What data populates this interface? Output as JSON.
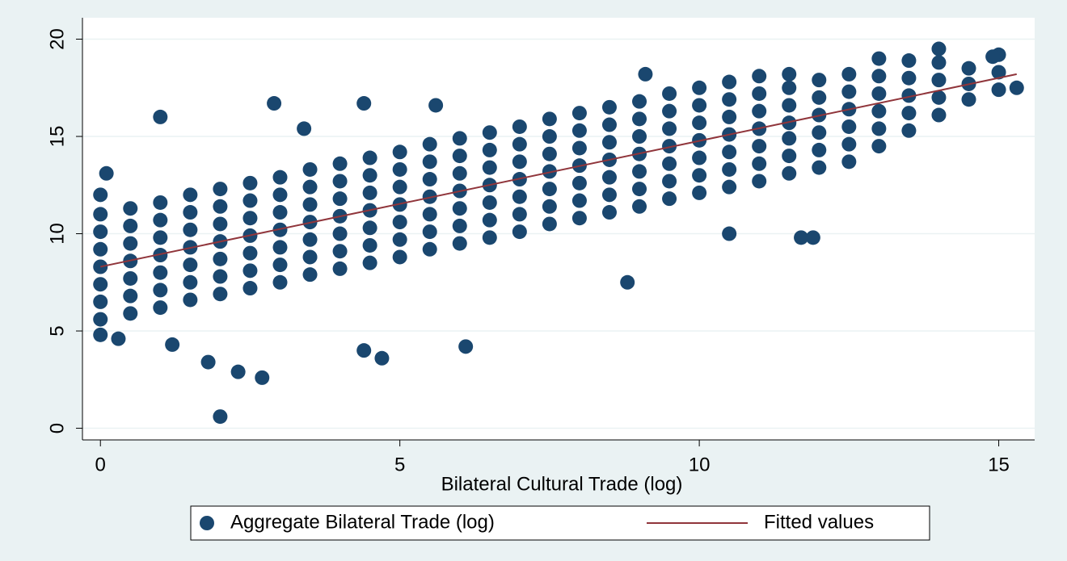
{
  "chart_data": {
    "type": "scatter",
    "xlabel": "Bilateral Cultural Trade (log)",
    "xlim": [
      -0.3,
      15.6
    ],
    "xticks": [
      0,
      5,
      10,
      15
    ],
    "ylim": [
      -0.6,
      21.1
    ],
    "yticks": [
      0,
      5,
      10,
      15,
      20
    ],
    "grid": true,
    "legend": "bottom",
    "series": [
      {
        "name": "Aggregate Bilateral Trade (log)",
        "color": "#1a476f",
        "x": [
          0,
          0,
          0,
          0,
          0,
          0,
          0,
          0,
          0,
          0.5,
          0.5,
          0.5,
          0.5,
          0.5,
          0.5,
          0.5,
          1,
          1,
          1,
          1,
          1,
          1,
          1,
          1.5,
          1.5,
          1.5,
          1.5,
          1.5,
          1.5,
          1.5,
          2,
          2,
          2,
          2,
          2,
          2,
          2,
          2.5,
          2.5,
          2.5,
          2.5,
          2.5,
          2.5,
          2.5,
          3,
          3,
          3,
          3,
          3,
          3,
          3,
          3.5,
          3.5,
          3.5,
          3.5,
          3.5,
          3.5,
          3.5,
          4,
          4,
          4,
          4,
          4,
          4,
          4,
          4.5,
          4.5,
          4.5,
          4.5,
          4.5,
          4.5,
          4.5,
          5,
          5,
          5,
          5,
          5,
          5,
          5,
          5.5,
          5.5,
          5.5,
          5.5,
          5.5,
          5.5,
          5.5,
          6,
          6,
          6,
          6,
          6,
          6,
          6,
          6.5,
          6.5,
          6.5,
          6.5,
          6.5,
          6.5,
          6.5,
          7,
          7,
          7,
          7,
          7,
          7,
          7,
          7.5,
          7.5,
          7.5,
          7.5,
          7.5,
          7.5,
          7.5,
          8,
          8,
          8,
          8,
          8,
          8,
          8,
          8.5,
          8.5,
          8.5,
          8.5,
          8.5,
          8.5,
          8.5,
          9,
          9,
          9,
          9,
          9,
          9,
          9,
          9.5,
          9.5,
          9.5,
          9.5,
          9.5,
          9.5,
          9.5,
          10,
          10,
          10,
          10,
          10,
          10,
          10,
          10.5,
          10.5,
          10.5,
          10.5,
          10.5,
          10.5,
          10.5,
          11,
          11,
          11,
          11,
          11,
          11,
          11,
          11.5,
          11.5,
          11.5,
          11.5,
          11.5,
          11.5,
          11.5,
          12,
          12,
          12,
          12,
          12,
          12,
          12.5,
          12.5,
          12.5,
          12.5,
          12.5,
          12.5,
          13,
          13,
          13,
          13,
          13,
          13,
          13.5,
          13.5,
          13.5,
          13.5,
          13.5,
          14,
          14,
          14,
          14,
          14,
          14.5,
          14.5,
          14.5,
          15,
          15,
          15,
          15.3,
          2,
          2.3,
          2.7,
          1.8,
          4.7,
          6.1,
          4.4,
          1,
          2.9,
          4.4,
          5.6,
          8.8,
          10.5,
          11.7,
          11.9,
          1.2,
          0.3,
          0.1,
          3.4,
          9.1,
          14.9
        ],
        "values": [
          5.6,
          6.5,
          7.4,
          8.3,
          9.2,
          10.1,
          11.0,
          12.0,
          4.8,
          5.9,
          6.8,
          7.7,
          8.6,
          9.5,
          10.4,
          11.3,
          6.2,
          7.1,
          8.0,
          8.9,
          9.8,
          10.7,
          11.6,
          6.6,
          7.5,
          8.4,
          9.3,
          10.2,
          11.1,
          12.0,
          6.9,
          7.8,
          8.7,
          9.6,
          10.5,
          11.4,
          12.3,
          7.2,
          8.1,
          9.0,
          9.9,
          10.8,
          11.7,
          12.6,
          7.5,
          8.4,
          9.3,
          10.2,
          11.1,
          12.0,
          12.9,
          7.9,
          8.8,
          9.7,
          10.6,
          11.5,
          12.4,
          13.3,
          8.2,
          9.1,
          10.0,
          10.9,
          11.8,
          12.7,
          13.6,
          8.5,
          9.4,
          10.3,
          11.2,
          12.1,
          13.0,
          13.9,
          8.8,
          9.7,
          10.6,
          11.5,
          12.4,
          13.3,
          14.2,
          9.2,
          10.1,
          11.0,
          11.9,
          12.8,
          13.7,
          14.6,
          9.5,
          10.4,
          11.3,
          12.2,
          13.1,
          14.0,
          14.9,
          9.8,
          10.7,
          11.6,
          12.5,
          13.4,
          14.3,
          15.2,
          10.1,
          11.0,
          11.9,
          12.8,
          13.7,
          14.6,
          15.5,
          10.5,
          11.4,
          12.3,
          13.2,
          14.1,
          15.0,
          15.9,
          10.8,
          11.7,
          12.6,
          13.5,
          14.4,
          15.3,
          16.2,
          11.1,
          12.0,
          12.9,
          13.8,
          14.7,
          15.6,
          16.5,
          11.4,
          12.3,
          13.2,
          14.1,
          15.0,
          15.9,
          16.8,
          11.8,
          12.7,
          13.6,
          14.5,
          15.4,
          16.3,
          17.2,
          12.1,
          13.0,
          13.9,
          14.8,
          15.7,
          16.6,
          17.5,
          12.4,
          13.3,
          14.2,
          15.1,
          16.0,
          16.9,
          17.8,
          12.7,
          13.6,
          14.5,
          15.4,
          16.3,
          17.2,
          18.1,
          13.1,
          14.0,
          14.9,
          15.7,
          16.6,
          17.5,
          18.2,
          13.4,
          14.3,
          15.2,
          16.1,
          17.0,
          17.9,
          13.7,
          14.6,
          15.5,
          16.4,
          17.3,
          18.2,
          14.5,
          15.4,
          16.3,
          17.2,
          18.1,
          19.0,
          15.3,
          16.2,
          17.1,
          18.0,
          18.9,
          16.1,
          17.0,
          17.9,
          18.8,
          19.5,
          16.9,
          17.7,
          18.5,
          17.4,
          18.3,
          19.2,
          17.5,
          0.6,
          2.9,
          2.6,
          3.4,
          3.6,
          4.2,
          4.0,
          16.0,
          16.7,
          16.7,
          16.6,
          7.5,
          10.0,
          9.8,
          9.8,
          4.3,
          4.6,
          13.1,
          15.4,
          18.2,
          19.1
        ]
      },
      {
        "name": "Fitted values",
        "color": "#90353b",
        "type": "line",
        "x": [
          0,
          15.3
        ],
        "values": [
          8.3,
          18.2
        ]
      }
    ]
  }
}
